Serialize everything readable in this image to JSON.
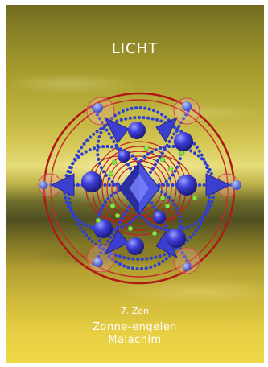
{
  "card": {
    "title": "LICHT",
    "number": "7. Zon",
    "name_line1": "Zonne-engelen",
    "name_line2": "Malachim"
  },
  "colors": {
    "sky": "#b9ad3a",
    "ring": "#b01818",
    "orb": "#3b3bd0",
    "node": "#8ee04a",
    "text": "#ffffff"
  }
}
